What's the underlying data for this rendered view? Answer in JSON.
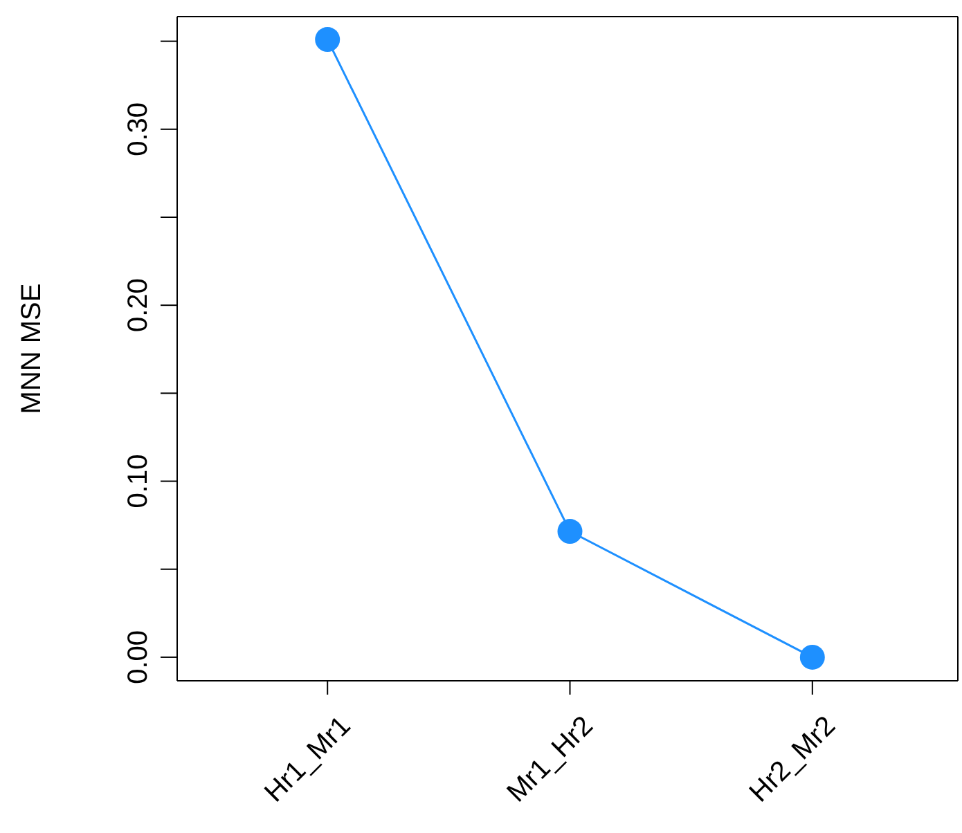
{
  "chart_data": {
    "type": "line",
    "ylabel": "MNN MSE",
    "categories": [
      "Hr1_Mr1",
      "Mr1_Hr2",
      "Hr2_Mr2"
    ],
    "series": [
      {
        "color": "#1e90ff",
        "values": [
          0.351,
          0.0715,
          0
        ]
      }
    ],
    "ylim": [
      -0.0134,
      0.364
    ],
    "yticks": [
      {
        "value": 0,
        "label": "0.00"
      },
      {
        "value": 0.05,
        "label": null
      },
      {
        "value": 0.1,
        "label": "0.10"
      },
      {
        "value": 0.15,
        "label": null
      },
      {
        "value": 0.2,
        "label": "0.20"
      },
      {
        "value": 0.25,
        "label": null
      },
      {
        "value": 0.3,
        "label": "0.30"
      },
      {
        "value": 0.35,
        "label": null
      }
    ],
    "grid": false,
    "marker": "circle",
    "line_style": "solid"
  }
}
